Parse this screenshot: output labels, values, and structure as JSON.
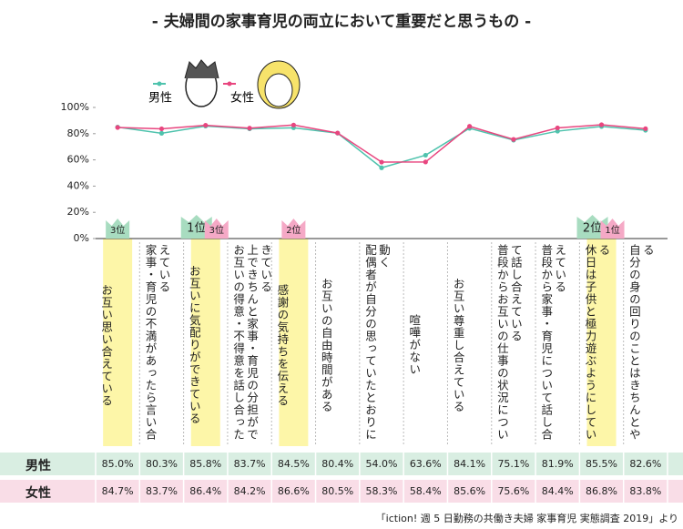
{
  "chart_data": {
    "type": "line",
    "title": "- 夫婦間の家事育児の両立において重要だと思うもの -",
    "categories": [
      "お互い思い合えている",
      "家事・育児の不満があったら言い合えている",
      "お互いに気配りができている",
      "お互いの得意・不得意を話し合った上できちんと家事・育児の分担ができている",
      "感謝の気持ちを伝える",
      "お互いの自由時間がある",
      "配偶者が自分の思っていたとおりに動く",
      "喧嘩がない",
      "お互い尊重し合えている",
      "普段からお互いの仕事の状況について話し合えている",
      "普段から家事・育児について話し合えている",
      "休日は子供と極力遊ぶようにしている",
      "自分の身の回りのことはきちんとやる"
    ],
    "series": [
      {
        "name": "男性",
        "color": "#4fc3ad",
        "values": [
          85.0,
          80.3,
          85.8,
          83.7,
          84.5,
          80.4,
          54.0,
          63.6,
          84.1,
          75.1,
          81.9,
          85.5,
          82.6
        ],
        "value_labels": [
          "85.0%",
          "80.3%",
          "85.8%",
          "83.7%",
          "84.5%",
          "80.4%",
          "54.0%",
          "63.6%",
          "84.1%",
          "75.1%",
          "81.9%",
          "85.5%",
          "82.6%"
        ],
        "rank_labels": [
          "3位",
          null,
          "1位",
          null,
          null,
          null,
          null,
          null,
          null,
          null,
          null,
          "2位",
          null
        ]
      },
      {
        "name": "女性",
        "color": "#e8467f",
        "values": [
          84.7,
          83.7,
          86.4,
          84.2,
          86.6,
          80.5,
          58.3,
          58.4,
          85.6,
          75.6,
          84.4,
          86.8,
          83.8
        ],
        "value_labels": [
          "84.7%",
          "83.7%",
          "86.4%",
          "84.2%",
          "86.6%",
          "80.5%",
          "58.3%",
          "58.4%",
          "85.6%",
          "75.6%",
          "84.4%",
          "86.8%",
          "83.8%"
        ],
        "rank_labels": [
          null,
          null,
          "3位",
          null,
          "2位",
          null,
          null,
          null,
          null,
          null,
          null,
          "1位",
          null
        ]
      }
    ],
    "ylim": [
      0,
      100
    ],
    "yticks": [
      {
        "value": 0,
        "label": "0%"
      },
      {
        "value": 20,
        "label": "20%"
      },
      {
        "value": 40,
        "label": "40%"
      },
      {
        "value": 60,
        "label": "60%"
      },
      {
        "value": 80,
        "label": "80%"
      },
      {
        "value": 100,
        "label": "100%"
      }
    ],
    "source": "「iction! 週 5 日勤務の共働き夫婦 家事育児 実態調査 2019」より"
  }
}
